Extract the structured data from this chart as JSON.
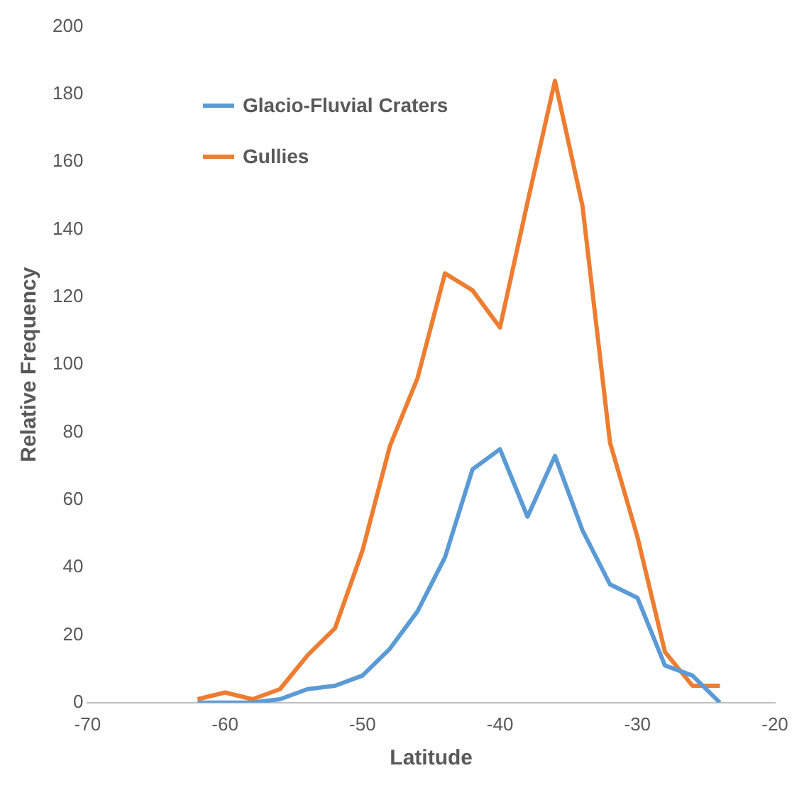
{
  "chart_data": {
    "type": "line",
    "xlabel": "Latitude",
    "ylabel": "Relative Frequency",
    "x": [
      -62,
      -60,
      -58,
      -56,
      -54,
      -52,
      -50,
      -48,
      -46,
      -44,
      -42,
      -40,
      -38,
      -36,
      -34,
      -32,
      -30,
      -28,
      -26,
      -24
    ],
    "series": [
      {
        "name": "Glacio-Fluvial Craters",
        "color": "#5b9bd5",
        "values": [
          0,
          0,
          0,
          1,
          4,
          5,
          8,
          16,
          27,
          43,
          69,
          75,
          55,
          73,
          51,
          35,
          31,
          11,
          8,
          0
        ]
      },
      {
        "name": "Gullies",
        "color": "#ed7d31",
        "values": [
          1,
          3,
          1,
          4,
          14,
          22,
          45,
          76,
          96,
          127,
          122,
          111,
          148,
          184,
          147,
          77,
          49,
          15,
          5,
          5
        ]
      }
    ],
    "xlim": [
      -70,
      -20
    ],
    "xticks": [
      -70,
      -60,
      -50,
      -40,
      -30,
      -20
    ],
    "ylim": [
      0,
      200
    ],
    "yticks": [
      0,
      20,
      40,
      60,
      80,
      100,
      120,
      140,
      160,
      180,
      200
    ],
    "grid": false,
    "legend": "top left",
    "marker": "none",
    "line_style": "solid"
  }
}
